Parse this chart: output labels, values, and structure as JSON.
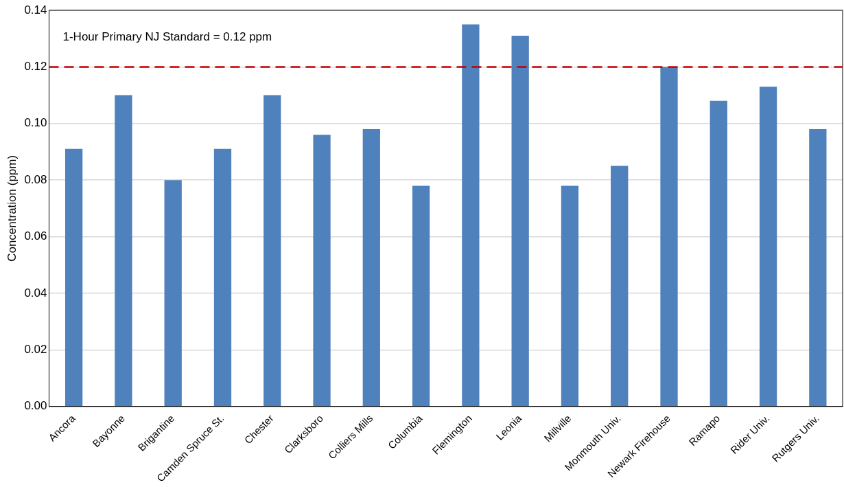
{
  "chart_data": {
    "type": "bar",
    "ylabel": "Concentration (ppm)",
    "categories": [
      "Ancora",
      "Bayonne",
      "Brigantine",
      "Camden Spruce St.",
      "Chester",
      "Clarksboro",
      "Colliers Mills",
      "Columbia",
      "Flemington",
      "Leonia",
      "Millville",
      "Monmouth Univ.",
      "Newark Firehouse",
      "Ramapo",
      "Rider Univ.",
      "Rutgers Univ."
    ],
    "values": [
      0.091,
      0.11,
      0.08,
      0.091,
      0.11,
      0.096,
      0.098,
      0.078,
      0.135,
      0.131,
      0.078,
      0.085,
      0.12,
      0.108,
      0.113,
      0.098
    ],
    "color": "#4f81bd",
    "ylim": [
      0,
      0.14
    ],
    "yticks": [
      {
        "value": 0,
        "label": "0.00"
      },
      {
        "value": 0.02,
        "label": "0.02"
      },
      {
        "value": 0.04,
        "label": "0.04"
      },
      {
        "value": 0.06,
        "label": "0.06"
      },
      {
        "value": 0.08,
        "label": "0.08"
      },
      {
        "value": 0.1,
        "label": "0.10"
      },
      {
        "value": 0.12,
        "label": "0.12"
      },
      {
        "value": 0.14,
        "label": "0.14"
      }
    ],
    "grid": "y",
    "ref_lines": [
      {
        "axis": "y",
        "value": 0.12,
        "label": "1-Hour Primary NJ Standard = 0.12 ppm",
        "color": "#c00000",
        "line_style": "dashed"
      }
    ]
  }
}
